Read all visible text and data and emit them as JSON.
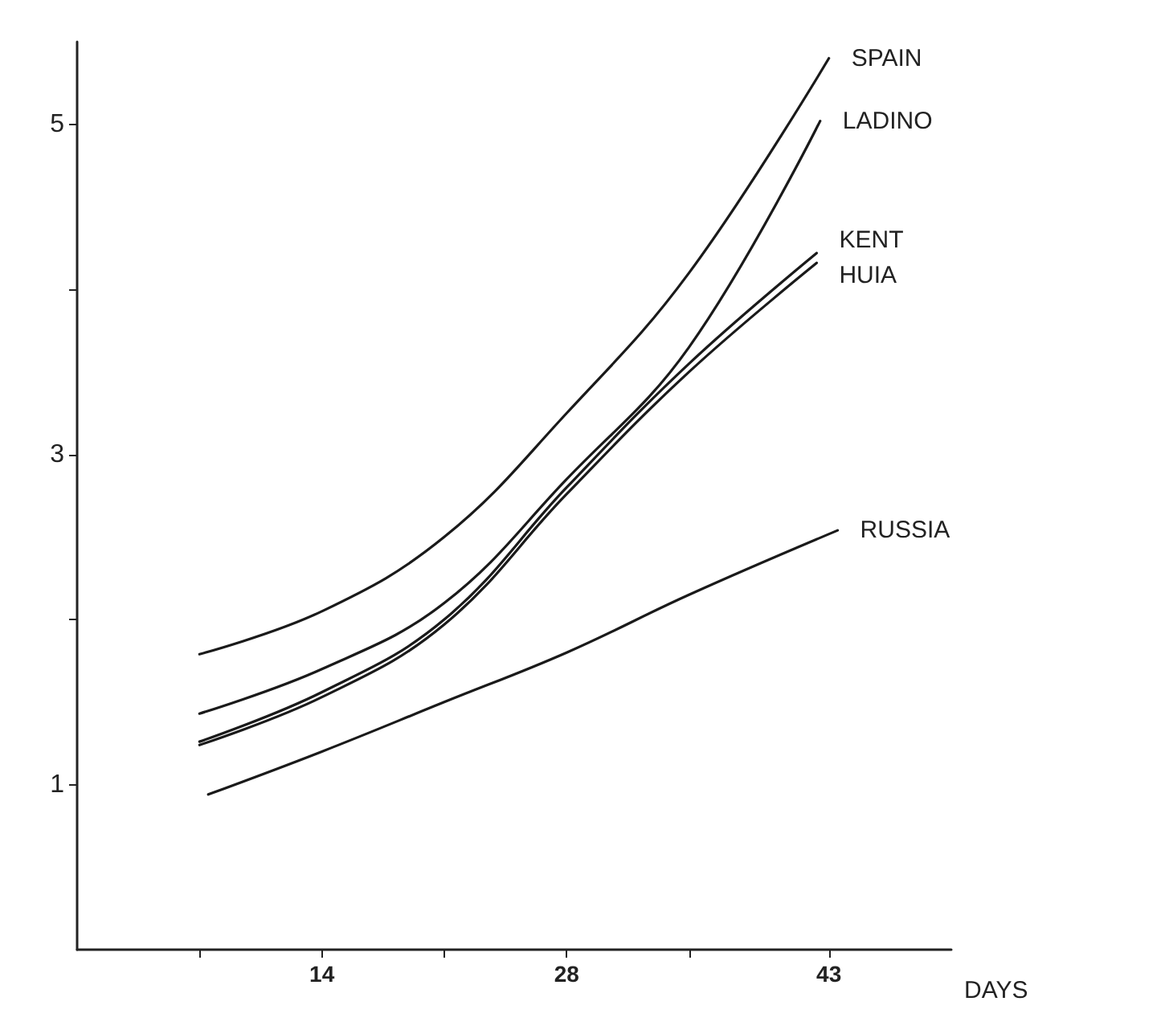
{
  "chart_data": {
    "type": "line",
    "xlabel": "DAYS",
    "xlim": [
      0,
      50
    ],
    "xticks": [
      {
        "value": 7,
        "label": null
      },
      14,
      {
        "value": 21,
        "label": null
      },
      28,
      {
        "value": 35,
        "label": null
      },
      43
    ],
    "ylim": [
      0,
      5.5
    ],
    "yticks": [
      1,
      {
        "value": 2,
        "label": null
      },
      3,
      {
        "value": 4,
        "label": null
      },
      5
    ],
    "grid": false,
    "legend": false,
    "marker": "none",
    "line_style": "solid",
    "series": [
      {
        "name": "SPAIN",
        "color": "#1a1a1a",
        "x": [
          7,
          14,
          21,
          28,
          35,
          43
        ],
        "values": [
          1.79,
          2.05,
          2.5,
          3.25,
          4.1,
          5.4
        ]
      },
      {
        "name": "LADINO",
        "color": "#1a1a1a",
        "x": [
          7,
          14,
          21,
          28,
          35,
          42.5
        ],
        "values": [
          1.43,
          1.7,
          2.1,
          2.85,
          3.65,
          5.02
        ]
      },
      {
        "name": "KENT",
        "color": "#1a1a1a",
        "x": [
          7,
          14,
          21,
          28,
          35,
          42.3
        ],
        "values": [
          1.26,
          1.56,
          2.0,
          2.8,
          3.55,
          4.22
        ]
      },
      {
        "name": "HUIA",
        "color": "#1a1a1a",
        "x": [
          7,
          14,
          21,
          28,
          35,
          42.3
        ],
        "values": [
          1.24,
          1.53,
          1.97,
          2.76,
          3.5,
          4.16
        ]
      },
      {
        "name": "RUSSIA",
        "color": "#1a1a1a",
        "x": [
          7.5,
          14,
          21,
          28,
          35,
          43.5
        ],
        "values": [
          0.94,
          1.2,
          1.5,
          1.8,
          2.15,
          2.54
        ]
      }
    ]
  }
}
